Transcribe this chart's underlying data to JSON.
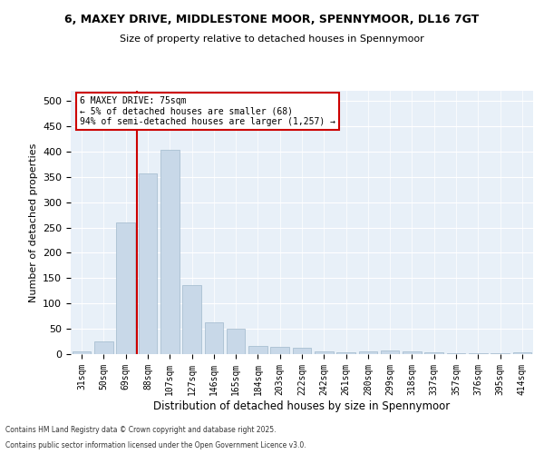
{
  "title1": "6, MAXEY DRIVE, MIDDLESTONE MOOR, SPENNYMOOR, DL16 7GT",
  "title2": "Size of property relative to detached houses in Spennymoor",
  "xlabel": "Distribution of detached houses by size in Spennymoor",
  "ylabel": "Number of detached properties",
  "categories": [
    "31sqm",
    "50sqm",
    "69sqm",
    "88sqm",
    "107sqm",
    "127sqm",
    "146sqm",
    "165sqm",
    "184sqm",
    "203sqm",
    "222sqm",
    "242sqm",
    "261sqm",
    "280sqm",
    "299sqm",
    "318sqm",
    "337sqm",
    "357sqm",
    "376sqm",
    "395sqm",
    "414sqm"
  ],
  "values": [
    6,
    25,
    260,
    356,
    403,
    136,
    62,
    50,
    17,
    14,
    12,
    5,
    3,
    6,
    7,
    5,
    4,
    1,
    2,
    1,
    3
  ],
  "bar_color": "#c8d8e8",
  "bar_edge_color": "#a0b8cc",
  "bar_width": 0.85,
  "red_line_x": 2.5,
  "annotation_line1": "6 MAXEY DRIVE: 75sqm",
  "annotation_line2": "← 5% of detached houses are smaller (68)",
  "annotation_line3": "94% of semi-detached houses are larger (1,257) →",
  "annotation_box_color": "#ffffff",
  "annotation_box_edge": "#cc0000",
  "ylim": [
    0,
    520
  ],
  "yticks": [
    0,
    50,
    100,
    150,
    200,
    250,
    300,
    350,
    400,
    450,
    500
  ],
  "bg_color": "#e8f0f8",
  "footer1": "Contains HM Land Registry data © Crown copyright and database right 2025.",
  "footer2": "Contains public sector information licensed under the Open Government Licence v3.0."
}
